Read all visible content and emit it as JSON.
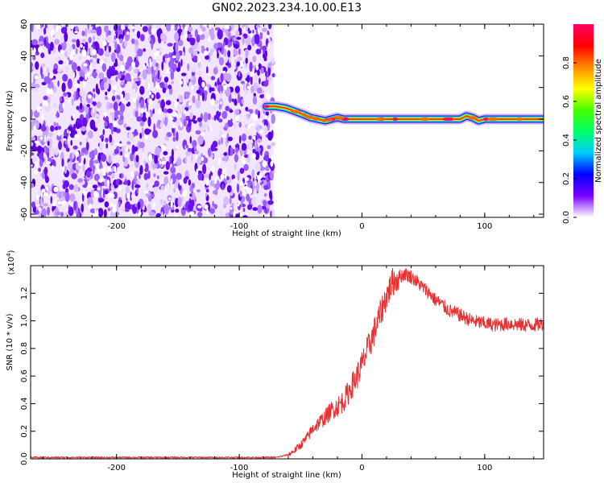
{
  "figure": {
    "title": "GN02.2023.234.10.00.E13"
  },
  "chart_data": [
    {
      "type": "heatmap",
      "id": "spectrogram",
      "xlabel": "Height of straight line (km)",
      "ylabel": "Frequency (Hz)",
      "xlim": [
        -270,
        148
      ],
      "ylim": [
        -62,
        60
      ],
      "xticks": [
        -200,
        -100,
        0,
        100
      ],
      "xtick_labels": [
        "-200",
        "-100",
        "0",
        "100"
      ],
      "yticks": [
        -60,
        -40,
        -20,
        0,
        20,
        40,
        60
      ],
      "ytick_labels": [
        "-60",
        "-40",
        "-20",
        "0",
        "20",
        "40",
        "60"
      ],
      "noise_region": {
        "x_start": -270,
        "x_end": -72
      },
      "signal_track": {
        "x": [
          -78,
          -70,
          -62,
          -55,
          -48,
          -42,
          -36,
          -30,
          -25,
          -20,
          -15,
          -10,
          0,
          20,
          40,
          60,
          70,
          80,
          85,
          90,
          95,
          100,
          110,
          148
        ],
        "y": [
          8,
          8,
          7,
          5,
          3,
          1,
          0,
          -1,
          0,
          1,
          0,
          0,
          0,
          0,
          0,
          0,
          0,
          0,
          2,
          1,
          -1,
          0,
          0,
          0
        ]
      },
      "colorbar": {
        "label": "Normalized spectral amplitude",
        "range": [
          0.0,
          1.0
        ],
        "ticks": [
          0.0,
          0.2,
          0.4,
          0.6,
          0.8
        ],
        "tick_labels": [
          "0.0",
          "0.2",
          "0.4",
          "0.6",
          "0.8"
        ],
        "colors": [
          "#ffffff",
          "#7a00ff",
          "#0000ff",
          "#00ccff",
          "#00ff66",
          "#44ff00",
          "#ffff00",
          "#ff8800",
          "#ff0000",
          "#ff0066"
        ]
      }
    },
    {
      "type": "line",
      "id": "snr",
      "xlabel": "Height of straight line (km)",
      "ylabel": "SNR (10 * v/v)",
      "y_scale_label": "(x10",
      "y_scale_exp": "4",
      "y_scale_close": ")",
      "xlim": [
        -270,
        148
      ],
      "ylim": [
        0.0,
        1.4
      ],
      "xticks": [
        -200,
        -100,
        0,
        100
      ],
      "xtick_labels": [
        "-200",
        "-100",
        "0",
        "100"
      ],
      "yticks": [
        0.0,
        0.2,
        0.4,
        0.6,
        0.8,
        1.0,
        1.2
      ],
      "ytick_labels": [
        "0.0",
        "0.2",
        "0.4",
        "0.6",
        "0.8",
        "1.0",
        "1.2"
      ],
      "color": "#e83030",
      "series": [
        {
          "x": [
            -270,
            -200,
            -100,
            -70,
            -60,
            -55,
            -50,
            -45,
            -40,
            -35,
            -30,
            -25,
            -20,
            -15,
            -10,
            -5,
            0,
            5,
            10,
            15,
            20,
            25,
            30,
            35,
            40,
            45,
            50,
            55,
            60,
            65,
            70,
            80,
            90,
            100,
            110,
            120,
            130,
            140,
            148
          ],
          "y": [
            0.01,
            0.01,
            0.01,
            0.01,
            0.03,
            0.06,
            0.1,
            0.15,
            0.22,
            0.26,
            0.3,
            0.35,
            0.38,
            0.42,
            0.5,
            0.58,
            0.68,
            0.8,
            0.92,
            1.05,
            1.18,
            1.28,
            1.32,
            1.34,
            1.32,
            1.28,
            1.24,
            1.2,
            1.15,
            1.12,
            1.08,
            1.04,
            1.0,
            0.98,
            0.97,
            0.98,
            0.97,
            0.97,
            0.98
          ]
        }
      ]
    }
  ]
}
